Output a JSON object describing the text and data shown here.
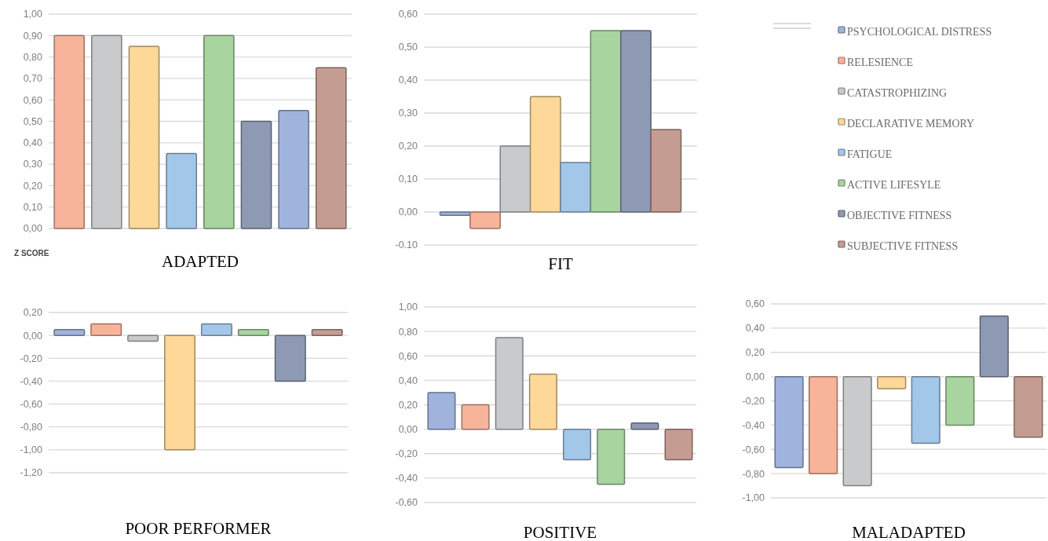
{
  "chart_data": [
    {
      "type": "bar",
      "title": "ADAPTED",
      "annotations": [
        "Z SCORE"
      ],
      "categories": [
        null,
        null,
        null,
        null,
        null,
        null,
        null,
        null
      ],
      "values": [
        0.9,
        0.9,
        0.85,
        0.35,
        0.9,
        0.5,
        0.55,
        0.75
      ],
      "colors": [
        "#f7b49a",
        "#c9cacb",
        "#fdd898",
        "#a3c7e8",
        "#a8d4a0",
        "#8e9ab4",
        "#9fb3dd",
        "#c59c92"
      ],
      "ylim": [
        0,
        1
      ],
      "yticks": [
        {
          "value": 0,
          "label": "0,00"
        },
        {
          "value": 0.1,
          "label": "0,10"
        },
        {
          "value": 0.2,
          "label": "0,20"
        },
        {
          "value": 0.3,
          "label": "0,30"
        },
        {
          "value": 0.4,
          "label": "0,40"
        },
        {
          "value": 0.5,
          "label": "0,50"
        },
        {
          "value": 0.6,
          "label": "0,60"
        },
        {
          "value": 0.7,
          "label": "0,70"
        },
        {
          "value": 0.8,
          "label": "0,80"
        },
        {
          "value": 0.9,
          "label": "0,90"
        },
        {
          "value": 1,
          "label": "1,00"
        }
      ],
      "grid": "y"
    },
    {
      "type": "bar",
      "title": "FIT",
      "categories": [
        null
      ],
      "series": [
        {
          "name": "PSYCHOLOGICAL DISTRESS",
          "color": "#9fb3dd",
          "values": [
            -0.01
          ]
        },
        {
          "name": "RELESIENCE",
          "color": "#f7b49a",
          "values": [
            -0.05
          ]
        },
        {
          "name": "CATASTROPHIZING",
          "color": "#c9cacb",
          "values": [
            0.2
          ]
        },
        {
          "name": "DECLARATIVE MEMORY",
          "color": "#fdd898",
          "values": [
            0.35
          ]
        },
        {
          "name": "FATIGUE",
          "color": "#a3c7e8",
          "values": [
            0.15
          ]
        },
        {
          "name": "ACTIVE LIFESYLE",
          "color": "#a8d4a0",
          "values": [
            0.55
          ]
        },
        {
          "name": "OBJECTIVE FITNESS",
          "color": "#8e9ab4",
          "values": [
            0.55
          ]
        },
        {
          "name": "SUBJECTIVE FITNESS",
          "color": "#c59c92",
          "values": [
            0.25
          ]
        }
      ],
      "ylim": [
        -0.1,
        0.6
      ],
      "yticks": [
        {
          "value": -0.1,
          "label": "-0.10"
        },
        {
          "value": 0,
          "label": "0,00"
        },
        {
          "value": 0.1,
          "label": "0,10"
        },
        {
          "value": 0.2,
          "label": "0,20"
        },
        {
          "value": 0.3,
          "label": "0,30"
        },
        {
          "value": 0.4,
          "label": "0,40"
        },
        {
          "value": 0.5,
          "label": "0,50"
        },
        {
          "value": 0.6,
          "label": "0,60"
        }
      ],
      "grid": "y",
      "legend": "right"
    },
    {
      "type": "bar",
      "title": "POOR PERFORMER",
      "categories": [
        null,
        null,
        null,
        null,
        null,
        null,
        null,
        null
      ],
      "values": [
        0.05,
        0.1,
        -0.05,
        -1.0,
        0.1,
        0.05,
        -0.4,
        0.05
      ],
      "colors": [
        "#9fb3dd",
        "#f7b49a",
        "#c9cacb",
        "#fdd898",
        "#a3c7e8",
        "#a8d4a0",
        "#8e9ab4",
        "#c59c92"
      ],
      "ylim": [
        -1.2,
        0.2
      ],
      "yticks": [
        {
          "value": -1.2,
          "label": "-1,20"
        },
        {
          "value": -1,
          "label": "-1,00"
        },
        {
          "value": -0.8,
          "label": "-0,80"
        },
        {
          "value": -0.6,
          "label": "-0,60"
        },
        {
          "value": -0.4,
          "label": "-0,40"
        },
        {
          "value": -0.2,
          "label": "-0,20"
        },
        {
          "value": 0,
          "label": "0,00"
        },
        {
          "value": 0.2,
          "label": "0,20"
        }
      ],
      "grid": "y"
    },
    {
      "type": "bar",
      "title": "POSITIVE",
      "categories": [
        null,
        null,
        null,
        null,
        null,
        null,
        null,
        null
      ],
      "values": [
        0.3,
        0.2,
        0.75,
        0.45,
        -0.25,
        -0.45,
        0.05,
        -0.25
      ],
      "colors": [
        "#9fb3dd",
        "#f7b49a",
        "#c9cacb",
        "#fdd898",
        "#a3c7e8",
        "#a8d4a0",
        "#8e9ab4",
        "#c59c92"
      ],
      "ylim": [
        -0.6,
        1
      ],
      "yticks": [
        {
          "value": -0.6,
          "label": "-0,60"
        },
        {
          "value": -0.4,
          "label": "-0,40"
        },
        {
          "value": -0.2,
          "label": "-0,20"
        },
        {
          "value": 0,
          "label": "0,00"
        },
        {
          "value": 0.2,
          "label": "0,20"
        },
        {
          "value": 0.4,
          "label": "0,40"
        },
        {
          "value": 0.6,
          "label": "0,60"
        },
        {
          "value": 0.8,
          "label": "0,80"
        },
        {
          "value": 1,
          "label": "1,00"
        }
      ],
      "grid": "y"
    },
    {
      "type": "bar",
      "title": "MALADAPTED",
      "categories": [
        null,
        null,
        null,
        null,
        null,
        null,
        null,
        null
      ],
      "values": [
        -0.75,
        -0.8,
        -0.9,
        -0.1,
        -0.55,
        -0.4,
        0.5,
        -0.5
      ],
      "colors": [
        "#9fb3dd",
        "#f7b49a",
        "#c9cacb",
        "#fdd898",
        "#a3c7e8",
        "#a8d4a0",
        "#8e9ab4",
        "#c59c92"
      ],
      "ylim": [
        -1,
        0.6
      ],
      "yticks": [
        {
          "value": -1,
          "label": "-1,00"
        },
        {
          "value": -0.8,
          "label": "-0,80"
        },
        {
          "value": -0.6,
          "label": "-0,60"
        },
        {
          "value": -0.4,
          "label": "-0,40"
        },
        {
          "value": -0.2,
          "label": "-0,20"
        },
        {
          "value": 0,
          "label": "0,00"
        },
        {
          "value": 0.2,
          "label": "0,20"
        },
        {
          "value": 0.4,
          "label": "0,40"
        },
        {
          "value": 0.6,
          "label": "0,60"
        }
      ],
      "grid": "y"
    }
  ]
}
